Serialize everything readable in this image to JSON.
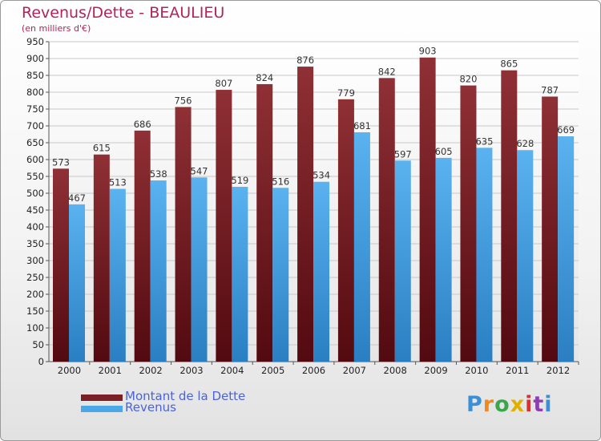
{
  "title": "Revenus/Dette - BEAULIEU",
  "subtitle": "(en milliers d'€)",
  "logo": {
    "text": "Proxiti",
    "letters": [
      {
        "ch": "P",
        "color": "#3a8fd6"
      },
      {
        "ch": "r",
        "color": "#f08a1c"
      },
      {
        "ch": "o",
        "color": "#3aa84a"
      },
      {
        "ch": "x",
        "color": "#e0b000"
      },
      {
        "ch": "i",
        "color": "#d8312e"
      },
      {
        "ch": "t",
        "color": "#8b3fb0"
      },
      {
        "ch": "i",
        "color": "#3a8fd6"
      }
    ]
  },
  "colors": {
    "series_dette": "#7a1f25",
    "series_revenus": "#4ca7e8",
    "title": "#b0245a",
    "legend_text": "#4b63d8"
  },
  "chart_data": {
    "type": "bar",
    "categories": [
      "2000",
      "2001",
      "2002",
      "2003",
      "2004",
      "2005",
      "2006",
      "2007",
      "2008",
      "2009",
      "2010",
      "2011",
      "2012"
    ],
    "series": [
      {
        "name": "Montant de la Dette",
        "values": [
          573,
          615,
          686,
          756,
          807,
          824,
          876,
          779,
          842,
          903,
          820,
          865,
          787
        ]
      },
      {
        "name": "Revenus",
        "values": [
          467,
          513,
          538,
          547,
          519,
          516,
          534,
          681,
          597,
          605,
          635,
          628,
          669
        ]
      }
    ],
    "ylim": [
      0,
      950
    ],
    "yticks": [
      0,
      50,
      100,
      150,
      200,
      250,
      300,
      350,
      400,
      450,
      500,
      550,
      600,
      650,
      700,
      750,
      800,
      850,
      900,
      950
    ],
    "grid": true,
    "legend_position": "bottom-left"
  }
}
